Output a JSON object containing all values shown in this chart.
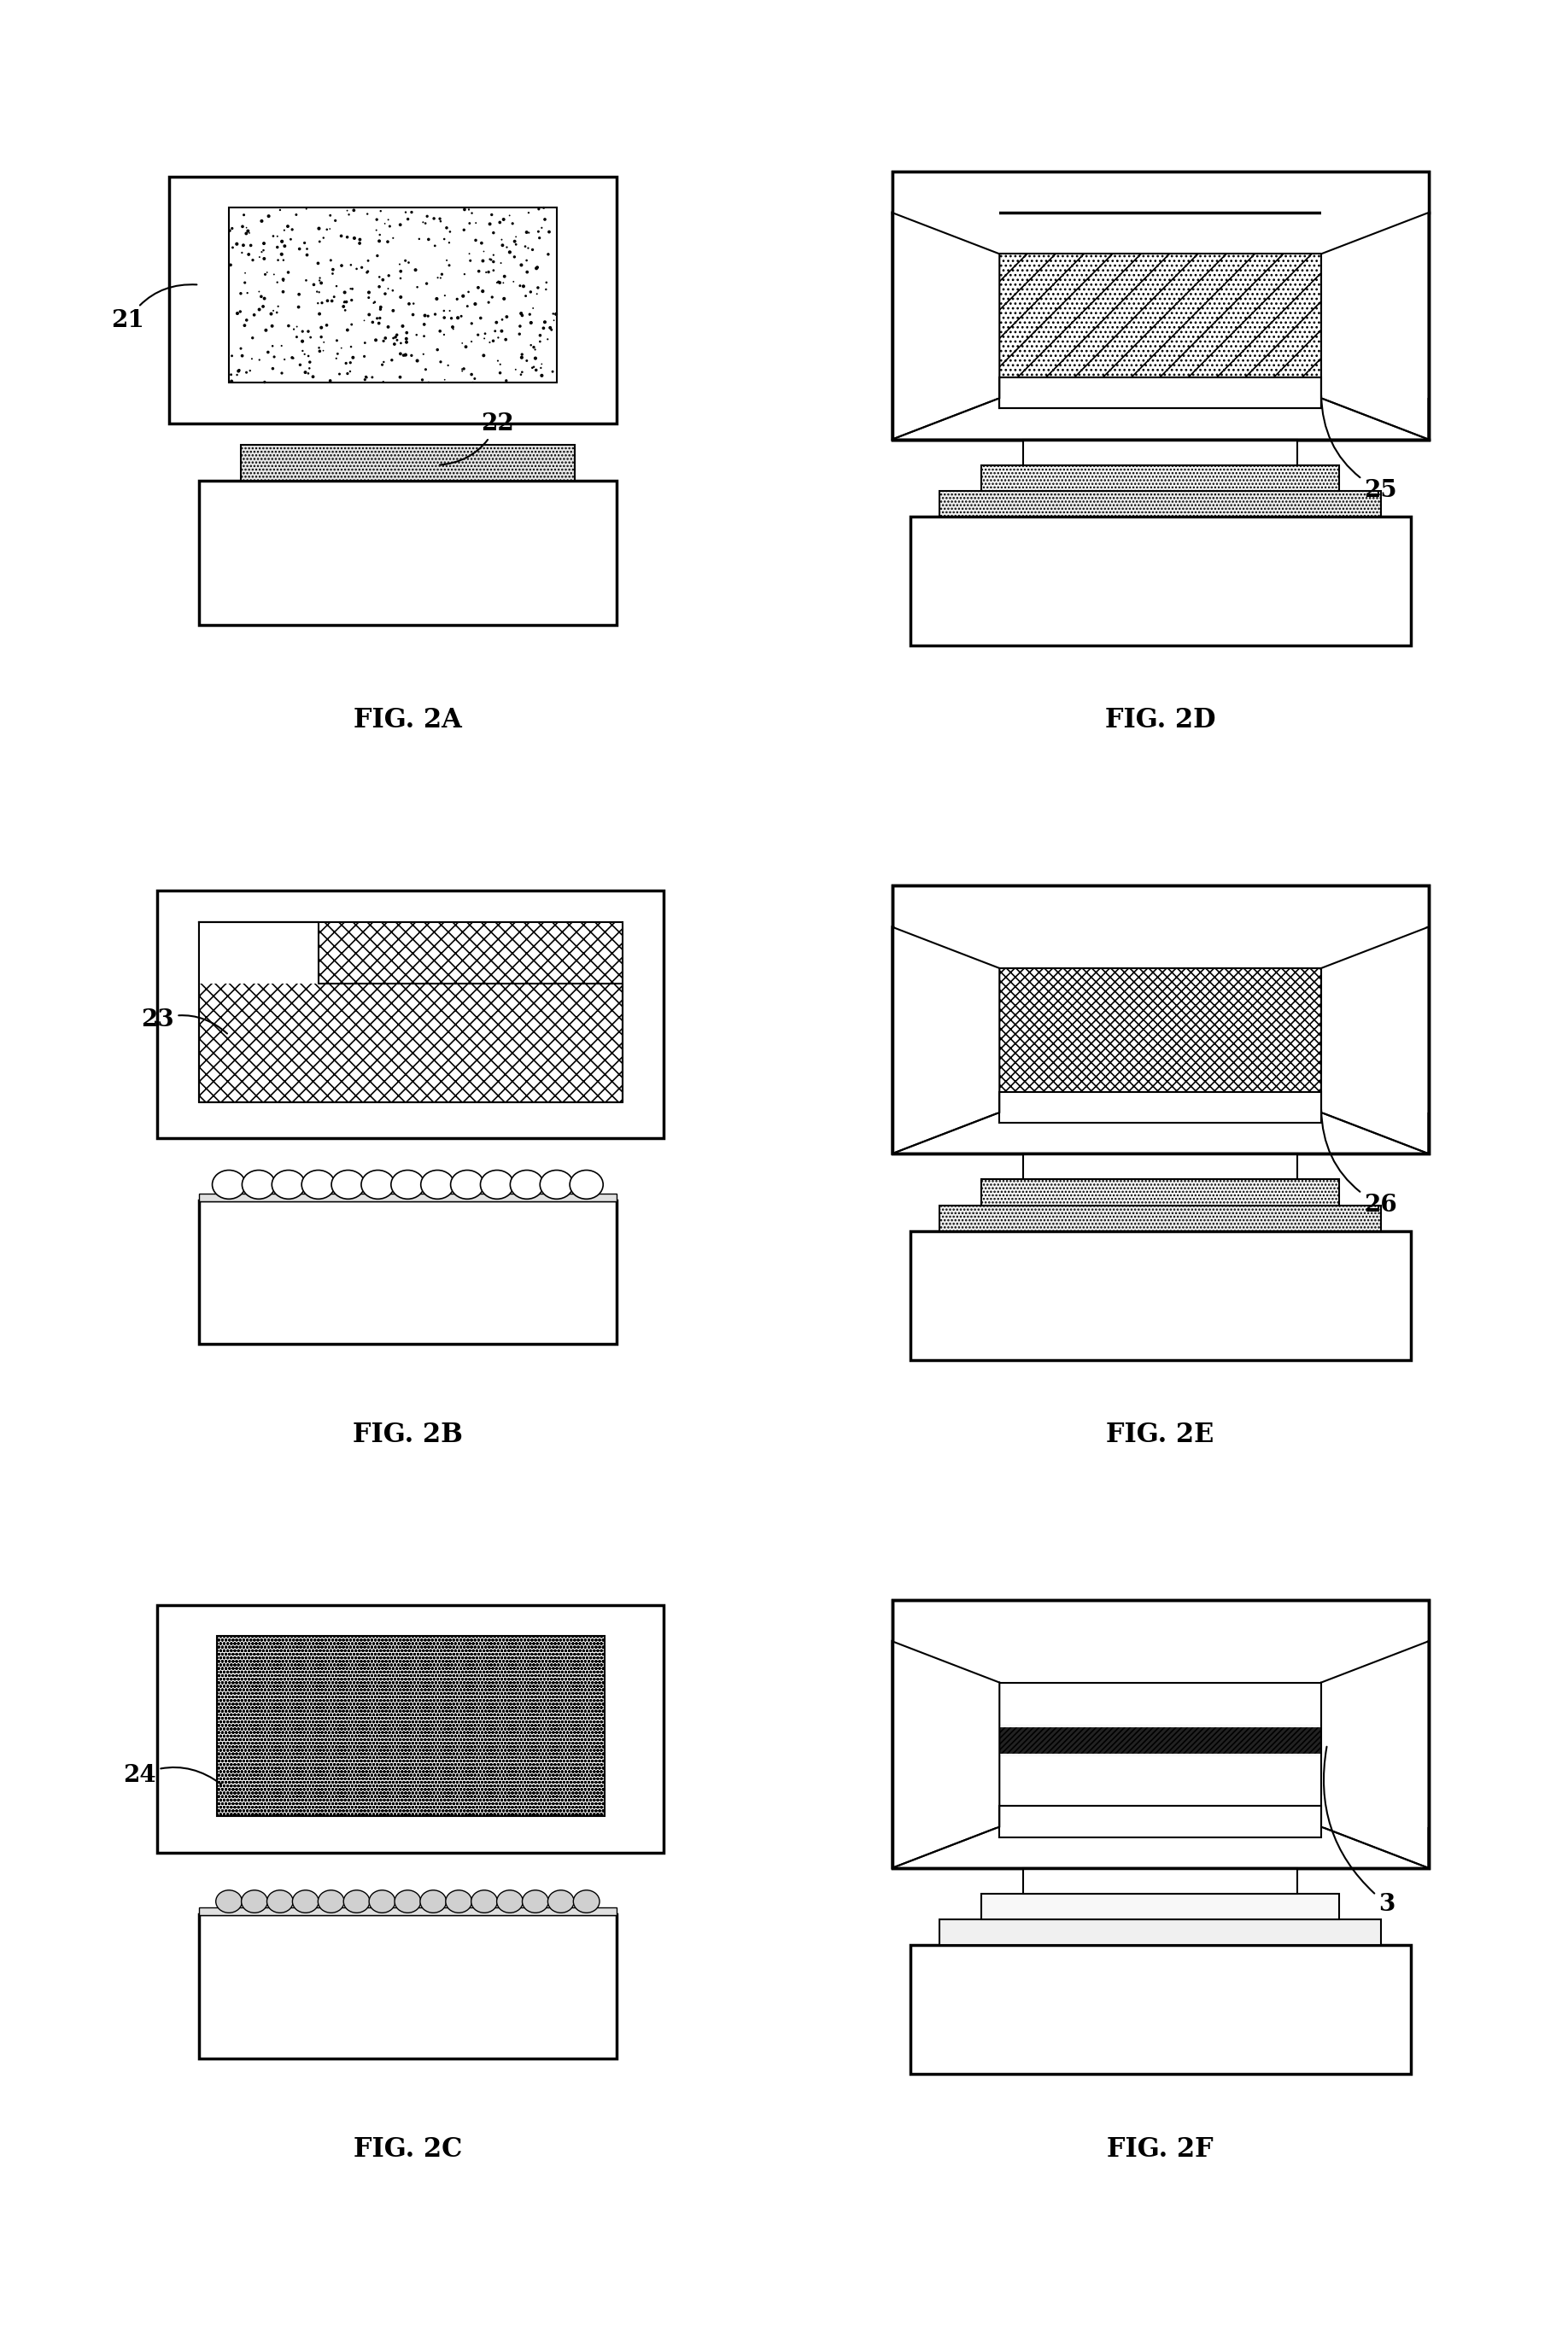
{
  "bg_color": "#ffffff",
  "lw_outer": 2.2,
  "lw_inner": 1.5,
  "lw_thin": 1.0,
  "figures": [
    {
      "name": "FIG. 2A",
      "col": 0,
      "row": 0
    },
    {
      "name": "FIG. 2D",
      "col": 1,
      "row": 0
    },
    {
      "name": "FIG. 2B",
      "col": 0,
      "row": 1
    },
    {
      "name": "FIG. 2E",
      "col": 1,
      "row": 1
    },
    {
      "name": "FIG. 2C",
      "col": 0,
      "row": 2
    },
    {
      "name": "FIG. 2F",
      "col": 1,
      "row": 2
    }
  ],
  "font_label": 20,
  "font_fig": 22
}
